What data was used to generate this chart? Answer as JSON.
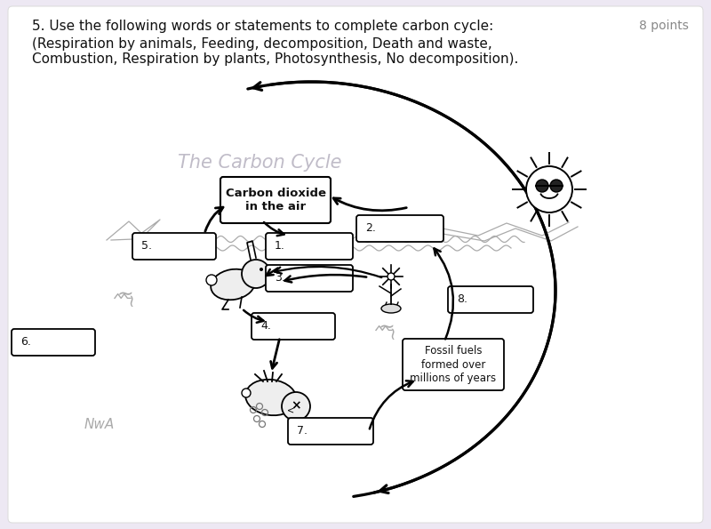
{
  "bg_color": "#ede8f3",
  "title_q": "5. Use the following words or statements to complete carbon cycle:",
  "points": "8 points",
  "subtitle": "(Respiration by animals, Feeding, decomposition, Death and waste,\nCombustion, Respiration by plants, Photosynthesis, No decomposition).",
  "diagram_title": "The Carbon Cycle",
  "co2_text": "Carbon dioxide\nin the air",
  "fossil_text": "Fossil fuels\nformed over\nmillions of years",
  "box1": "1.",
  "box2": "2.",
  "box3": "3.",
  "box4": "4.",
  "box5": "5.",
  "box6": "6.",
  "box7": "7.",
  "box8": "8.",
  "squiggle_left": "Nw",
  "squiggle_right": "Nw",
  "squiggle_bottom": "NwA"
}
